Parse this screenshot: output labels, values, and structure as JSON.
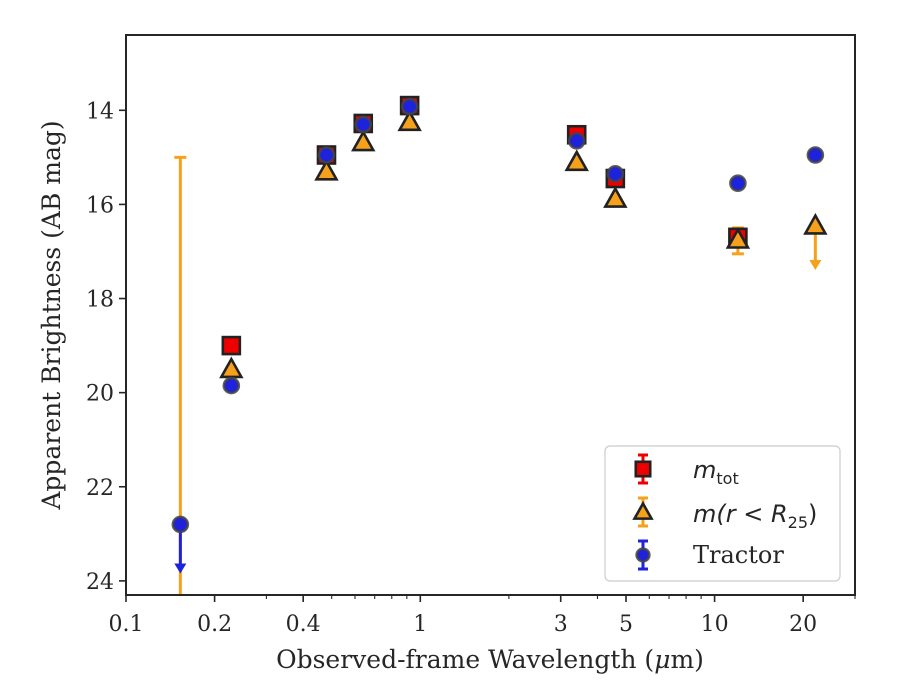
{
  "chart_data": {
    "type": "scatter",
    "xlabel_pre": "Observed-frame Wavelength (",
    "xlabel_mu": "μ",
    "xlabel_post": "m)",
    "ylabel": "Apparent Brightness (AB mag)",
    "xscale": "log",
    "yscale": "linear",
    "y_inverted": true,
    "xlim": [
      0.1,
      30
    ],
    "ylim": [
      24.3,
      12.4
    ],
    "xticks": [
      {
        "value": 0.1,
        "label": "0.1"
      },
      {
        "value": 0.2,
        "label": "0.2"
      },
      {
        "value": 0.4,
        "label": "0.4"
      },
      {
        "value": 1,
        "label": "1"
      },
      {
        "value": 3,
        "label": "3"
      },
      {
        "value": 5,
        "label": "5"
      },
      {
        "value": 10,
        "label": "10"
      },
      {
        "value": 20,
        "label": "20"
      }
    ],
    "yticks": [
      {
        "value": 14,
        "label": "14"
      },
      {
        "value": 16,
        "label": "16"
      },
      {
        "value": 18,
        "label": "18"
      },
      {
        "value": 20,
        "label": "20"
      },
      {
        "value": 22,
        "label": "22"
      },
      {
        "value": 24,
        "label": "24"
      }
    ],
    "grid": false,
    "legend_position": "lower-right",
    "series": [
      {
        "key": "mtot",
        "marker": "square",
        "color": "#ee0000",
        "edge_color": "#222222",
        "points": [
          {
            "x": 0.228,
            "y": 19.0
          },
          {
            "x": 0.48,
            "y": 14.95
          },
          {
            "x": 0.64,
            "y": 14.28
          },
          {
            "x": 0.92,
            "y": 13.9
          },
          {
            "x": 3.4,
            "y": 14.52
          },
          {
            "x": 4.6,
            "y": 15.45
          },
          {
            "x": 12.0,
            "y": 16.7
          }
        ]
      },
      {
        "key": "mr25",
        "marker": "triangle",
        "color": "#f5a11c",
        "edge_color": "#222222",
        "points": [
          {
            "x": 0.228,
            "y": 19.5
          },
          {
            "x": 0.48,
            "y": 15.3
          },
          {
            "x": 0.64,
            "y": 14.68
          },
          {
            "x": 0.92,
            "y": 14.25
          },
          {
            "x": 3.4,
            "y": 15.1
          },
          {
            "x": 4.6,
            "y": 15.88
          },
          {
            "x": 12.0,
            "y": 16.75
          },
          {
            "x": 22.0,
            "y": 16.45
          }
        ]
      },
      {
        "key": "tractor",
        "marker": "circle",
        "color": "#1f22dd",
        "edge_color": "#444444",
        "points": [
          {
            "x": 0.153,
            "y": 22.8
          },
          {
            "x": 0.228,
            "y": 19.85
          },
          {
            "x": 0.48,
            "y": 14.95
          },
          {
            "x": 0.64,
            "y": 14.3
          },
          {
            "x": 0.92,
            "y": 13.92
          },
          {
            "x": 3.4,
            "y": 14.65
          },
          {
            "x": 4.6,
            "y": 15.35
          },
          {
            "x": 12.0,
            "y": 15.55
          },
          {
            "x": 22.0,
            "y": 14.95
          }
        ]
      }
    ],
    "error_bars": [
      {
        "series": "mr25",
        "x": 0.153,
        "y_bright": 15.0,
        "y_faint": 24.5,
        "type": "range",
        "color": "#f5a11c"
      },
      {
        "series": "tractor",
        "x": 0.153,
        "y_from": 22.8,
        "y_to": 23.8,
        "type": "upper-limit-arrow",
        "color": "#1f22dd"
      },
      {
        "series": "mr25",
        "x": 22.0,
        "y_from": 16.45,
        "y_to": 17.35,
        "type": "upper-limit-arrow",
        "color": "#f5a11c"
      },
      {
        "series": "mr25",
        "x": 12.0,
        "y_bright": 16.5,
        "y_faint": 17.05,
        "type": "range",
        "color": "#f5a11c"
      }
    ],
    "legend": [
      {
        "key": "mtot",
        "label_main": "m",
        "label_sub": "tot",
        "color": "#ee0000"
      },
      {
        "key": "mr25",
        "label_main": "m(r < R",
        "label_sub": "25",
        "label_tail": ")",
        "color": "#f5a11c"
      },
      {
        "key": "tractor",
        "label_main": "Tractor",
        "color": "#1f22dd"
      }
    ]
  }
}
